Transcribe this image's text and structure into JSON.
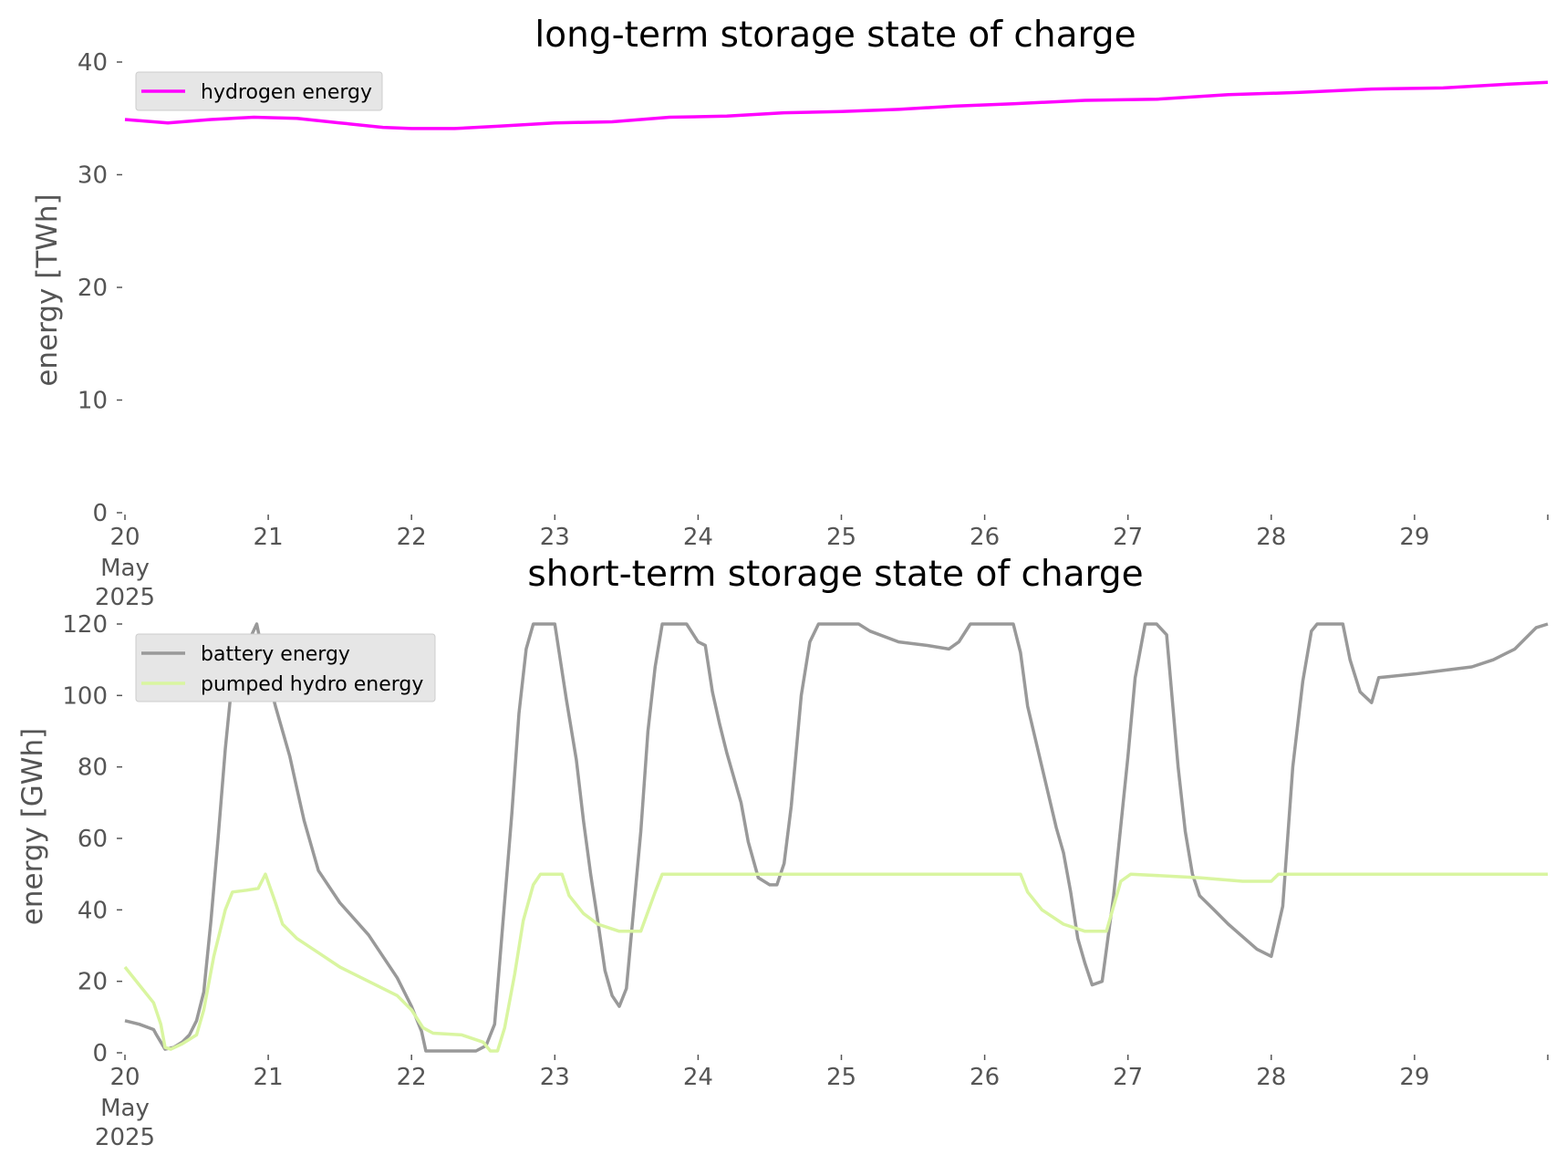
{
  "charts": [
    {
      "title": "long-term storage state of charge",
      "ylabel": "energy [TWh]",
      "yticks": [
        "0",
        "10",
        "20",
        "30",
        "40"
      ],
      "xticks": [
        "20",
        "21",
        "22",
        "23",
        "24",
        "25",
        "26",
        "27",
        "28",
        "29"
      ],
      "xtick_first_sub": [
        "May",
        "2025"
      ],
      "legend": [
        "hydrogen energy"
      ]
    },
    {
      "title": "short-term storage state of charge",
      "ylabel": "energy [GWh]",
      "yticks": [
        "0",
        "20",
        "40",
        "60",
        "80",
        "100",
        "120"
      ],
      "xticks": [
        "20",
        "21",
        "22",
        "23",
        "24",
        "25",
        "26",
        "27",
        "28",
        "29"
      ],
      "xtick_first_sub": [
        "May",
        "2025"
      ],
      "legend": [
        "battery energy",
        "pumped hydro energy"
      ]
    }
  ],
  "chart_data": [
    {
      "type": "line",
      "title": "long-term storage state of charge",
      "xlabel": "",
      "ylabel": "energy [TWh]",
      "x_unit": "days since 2025-05-20 00:00",
      "xlim": [
        0,
        9.93
      ],
      "ylim": [
        0,
        40
      ],
      "grid": false,
      "legend_position": "top-left",
      "series": [
        {
          "name": "hydrogen energy",
          "color": "#ff00ff",
          "points": [
            [
              0,
              34.9
            ],
            [
              0.3,
              34.6
            ],
            [
              0.6,
              34.9
            ],
            [
              0.9,
              35.1
            ],
            [
              1.2,
              35.0
            ],
            [
              1.5,
              34.6
            ],
            [
              1.8,
              34.2
            ],
            [
              2.0,
              34.1
            ],
            [
              2.3,
              34.1
            ],
            [
              2.6,
              34.3
            ],
            [
              3.0,
              34.6
            ],
            [
              3.4,
              34.7
            ],
            [
              3.8,
              35.1
            ],
            [
              4.2,
              35.2
            ],
            [
              4.6,
              35.5
            ],
            [
              5.0,
              35.6
            ],
            [
              5.4,
              35.8
            ],
            [
              5.8,
              36.1
            ],
            [
              6.2,
              36.3
            ],
            [
              6.7,
              36.6
            ],
            [
              7.2,
              36.7
            ],
            [
              7.7,
              37.1
            ],
            [
              8.2,
              37.3
            ],
            [
              8.7,
              37.6
            ],
            [
              9.2,
              37.7
            ],
            [
              9.6,
              38.0
            ],
            [
              9.93,
              38.2
            ]
          ]
        }
      ]
    },
    {
      "type": "line",
      "title": "short-term storage state of charge",
      "xlabel": "",
      "ylabel": "energy [GWh]",
      "x_unit": "days since 2025-05-20 00:00",
      "xlim": [
        0,
        9.93
      ],
      "ylim": [
        0,
        120
      ],
      "grid": false,
      "legend_position": "top-left",
      "series": [
        {
          "name": "battery energy",
          "color": "#999999",
          "points": [
            [
              0,
              9
            ],
            [
              0.1,
              8
            ],
            [
              0.2,
              6.5
            ],
            [
              0.22,
              5
            ],
            [
              0.28,
              1
            ],
            [
              0.34,
              1.5
            ],
            [
              0.4,
              3
            ],
            [
              0.45,
              5
            ],
            [
              0.5,
              9
            ],
            [
              0.55,
              17
            ],
            [
              0.6,
              37
            ],
            [
              0.65,
              60
            ],
            [
              0.7,
              85
            ],
            [
              0.75,
              105
            ],
            [
              0.8,
              112
            ],
            [
              0.85,
              114
            ],
            [
              0.92,
              120
            ],
            [
              0.98,
              108
            ],
            [
              1.05,
              97
            ],
            [
              1.15,
              83
            ],
            [
              1.2,
              74
            ],
            [
              1.25,
              65
            ],
            [
              1.35,
              51
            ],
            [
              1.5,
              42
            ],
            [
              1.7,
              33
            ],
            [
              1.9,
              21
            ],
            [
              2.0,
              13
            ],
            [
              2.07,
              6
            ],
            [
              2.1,
              0.5
            ],
            [
              2.45,
              0.5
            ],
            [
              2.52,
              2
            ],
            [
              2.58,
              8
            ],
            [
              2.7,
              67
            ],
            [
              2.75,
              95
            ],
            [
              2.8,
              113
            ],
            [
              2.85,
              120
            ],
            [
              3.0,
              120
            ],
            [
              3.08,
              99
            ],
            [
              3.15,
              82
            ],
            [
              3.2,
              65
            ],
            [
              3.25,
              50
            ],
            [
              3.3,
              37
            ],
            [
              3.35,
              23
            ],
            [
              3.4,
              16
            ],
            [
              3.45,
              13
            ],
            [
              3.5,
              18
            ],
            [
              3.55,
              40
            ],
            [
              3.6,
              62
            ],
            [
              3.65,
              90
            ],
            [
              3.7,
              108
            ],
            [
              3.75,
              120
            ],
            [
              3.92,
              120
            ],
            [
              4.0,
              115
            ],
            [
              4.05,
              114
            ],
            [
              4.1,
              101
            ],
            [
              4.15,
              92
            ],
            [
              4.2,
              84
            ],
            [
              4.3,
              70
            ],
            [
              4.35,
              59
            ],
            [
              4.42,
              49
            ],
            [
              4.5,
              47
            ],
            [
              4.55,
              47
            ],
            [
              4.6,
              53
            ],
            [
              4.65,
              69
            ],
            [
              4.72,
              100
            ],
            [
              4.78,
              115
            ],
            [
              4.84,
              120
            ],
            [
              5.12,
              120
            ],
            [
              5.2,
              118
            ],
            [
              5.4,
              115
            ],
            [
              5.6,
              114
            ],
            [
              5.75,
              113
            ],
            [
              5.82,
              115
            ],
            [
              5.9,
              120
            ],
            [
              6.2,
              120
            ],
            [
              6.25,
              112
            ],
            [
              6.3,
              97
            ],
            [
              6.4,
              80
            ],
            [
              6.5,
              63
            ],
            [
              6.55,
              56
            ],
            [
              6.6,
              45
            ],
            [
              6.65,
              32
            ],
            [
              6.7,
              25
            ],
            [
              6.75,
              19
            ],
            [
              6.82,
              20
            ],
            [
              6.9,
              44
            ],
            [
              7.0,
              83
            ],
            [
              7.05,
              105
            ],
            [
              7.12,
              120
            ],
            [
              7.2,
              120
            ],
            [
              7.27,
              117
            ],
            [
              7.35,
              80
            ],
            [
              7.4,
              62
            ],
            [
              7.45,
              50
            ],
            [
              7.5,
              44
            ],
            [
              7.6,
              40
            ],
            [
              7.7,
              36
            ],
            [
              7.9,
              29
            ],
            [
              8.0,
              27
            ],
            [
              8.08,
              41
            ],
            [
              8.15,
              80
            ],
            [
              8.22,
              104
            ],
            [
              8.28,
              118
            ],
            [
              8.32,
              120
            ],
            [
              8.5,
              120
            ],
            [
              8.55,
              110
            ],
            [
              8.62,
              101
            ],
            [
              8.7,
              98
            ],
            [
              8.75,
              105
            ],
            [
              9.0,
              106
            ],
            [
              9.2,
              107
            ],
            [
              9.4,
              108
            ],
            [
              9.55,
              110
            ],
            [
              9.7,
              113
            ],
            [
              9.85,
              119
            ],
            [
              9.93,
              120
            ]
          ]
        },
        {
          "name": "pumped hydro energy",
          "color": "#d9f5a0",
          "points": [
            [
              0,
              24
            ],
            [
              0.1,
              19
            ],
            [
              0.2,
              14
            ],
            [
              0.25,
              8
            ],
            [
              0.28,
              1.5
            ],
            [
              0.32,
              1
            ],
            [
              0.4,
              2.5
            ],
            [
              0.5,
              5
            ],
            [
              0.55,
              12
            ],
            [
              0.62,
              27
            ],
            [
              0.7,
              40
            ],
            [
              0.75,
              45
            ],
            [
              0.85,
              45.5
            ],
            [
              0.93,
              46
            ],
            [
              0.98,
              50
            ],
            [
              1.05,
              42
            ],
            [
              1.1,
              36
            ],
            [
              1.2,
              32
            ],
            [
              1.35,
              28
            ],
            [
              1.5,
              24
            ],
            [
              1.7,
              20
            ],
            [
              1.9,
              16
            ],
            [
              2.0,
              12
            ],
            [
              2.08,
              7
            ],
            [
              2.15,
              5.5
            ],
            [
              2.35,
              5
            ],
            [
              2.5,
              3
            ],
            [
              2.55,
              0.5
            ],
            [
              2.6,
              0.5
            ],
            [
              2.65,
              7
            ],
            [
              2.72,
              22
            ],
            [
              2.78,
              37
            ],
            [
              2.85,
              47
            ],
            [
              2.9,
              50
            ],
            [
              3.05,
              50
            ],
            [
              3.1,
              44
            ],
            [
              3.2,
              39
            ],
            [
              3.3,
              36
            ],
            [
              3.45,
              34
            ],
            [
              3.55,
              34
            ],
            [
              3.6,
              34
            ],
            [
              3.7,
              45
            ],
            [
              3.75,
              50
            ],
            [
              6.25,
              50
            ],
            [
              6.3,
              45
            ],
            [
              6.4,
              40
            ],
            [
              6.55,
              36
            ],
            [
              6.7,
              34
            ],
            [
              6.85,
              34
            ],
            [
              6.95,
              48
            ],
            [
              7.02,
              50
            ],
            [
              7.5,
              49
            ],
            [
              7.8,
              48
            ],
            [
              8.0,
              48
            ],
            [
              8.05,
              50
            ],
            [
              9.93,
              50
            ]
          ]
        }
      ]
    }
  ]
}
